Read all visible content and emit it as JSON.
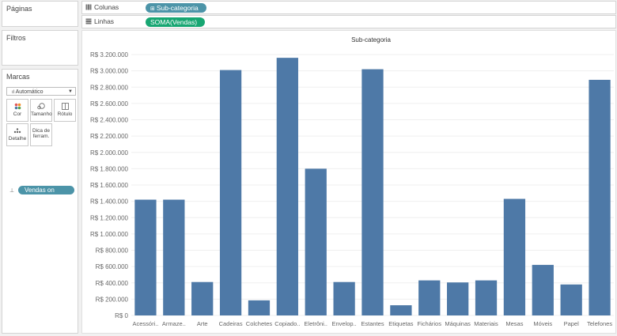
{
  "left_panel": {
    "pages_title": "Páginas",
    "filters_title": "Filtros",
    "marks_title": "Marcas",
    "marks_type": "Automático",
    "mark_buttons": [
      {
        "label": "Cor",
        "icon": "color-icon"
      },
      {
        "label": "Tamanho",
        "icon": "size-icon"
      },
      {
        "label": "Rótulo",
        "icon": "label-icon"
      },
      {
        "label": "Detalhe",
        "icon": "detail-icon"
      },
      {
        "label_line1": "Dica de",
        "label_line2": "ferram.",
        "icon": "tooltip-icon"
      }
    ],
    "marks_field": "Vendas on"
  },
  "shelves": {
    "columns_label": "Colunas",
    "columns_pill": "Sub-categoria",
    "rows_label": "Linhas",
    "rows_pill": "SOMA(Vendas)"
  },
  "colors": {
    "bar": "#4e79a7",
    "pill_dimension": "#4c94a8",
    "pill_measure": "#17a672"
  },
  "chart_data": {
    "type": "bar",
    "title": "Sub-categoria",
    "categories": [
      "Acessóri..",
      "Armaze..",
      "Arte",
      "Cadeiras",
      "Colchetes",
      "Copiado..",
      "Eletrôni..",
      "Envelop..",
      "Estantes",
      "Etiquetas",
      "Fichários",
      "Máquinas",
      "Materiais",
      "Mesas",
      "Móveis",
      "Papel",
      "Telefones"
    ],
    "values": [
      1420000,
      1420000,
      410000,
      3010000,
      185000,
      3160000,
      1800000,
      410000,
      3020000,
      125000,
      430000,
      405000,
      430000,
      1430000,
      620000,
      380000,
      2890000
    ],
    "ylim": [
      0,
      3200000
    ],
    "yticks": [
      0,
      200000,
      400000,
      600000,
      800000,
      1000000,
      1200000,
      1400000,
      1600000,
      1800000,
      2000000,
      2200000,
      2400000,
      2600000,
      2800000,
      3000000,
      3200000
    ],
    "ytick_labels": [
      "R$ 0",
      "R$ 200.000",
      "R$ 400.000",
      "R$ 600.000",
      "R$ 800.000",
      "R$ 1.000.000",
      "R$ 1.200.000",
      "R$ 1.400.000",
      "R$ 1.600.000",
      "R$ 1.800.000",
      "R$ 2.000.000",
      "R$ 2.200.000",
      "R$ 2.400.000",
      "R$ 2.600.000",
      "R$ 2.800.000",
      "R$ 3.000.000",
      "R$ 3.200.000"
    ],
    "grid": true
  }
}
